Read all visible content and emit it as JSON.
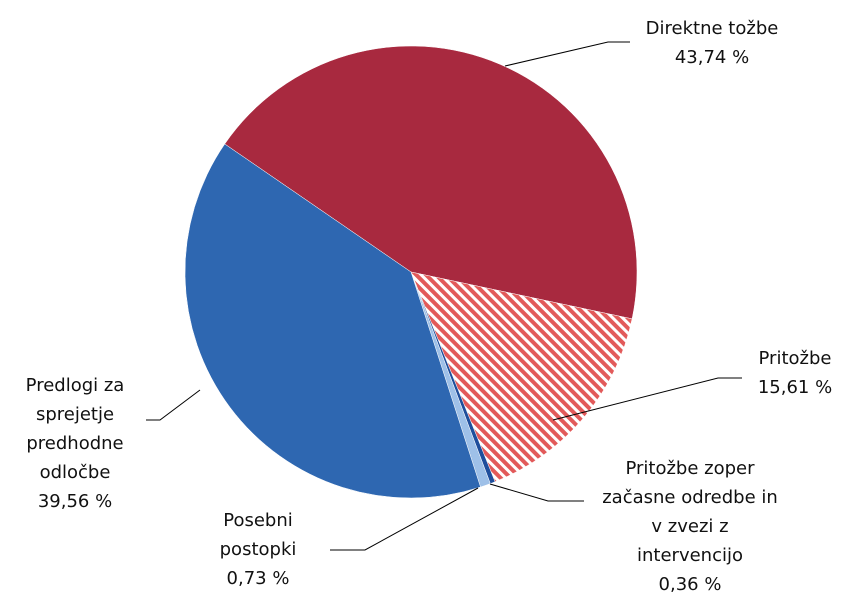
{
  "chart_data": {
    "type": "pie",
    "categories": [
      "Direktne tožbe",
      "Pritožbe",
      "Pritožbe zoper začasne odredbe in v zvezi z intervencijo",
      "Posebni postopki",
      "Predlogi za sprejetje predhodne odločbe"
    ],
    "values": [
      43.74,
      15.61,
      0.36,
      0.73,
      39.56
    ],
    "value_labels": [
      "43,74 %",
      "15,61 %",
      "0,36 %",
      "0,73 %",
      "39,56 %"
    ],
    "colors": [
      "#a8293f",
      "#e25a5a",
      "#1f4e9c",
      "#9ec0e8",
      "#2e67b1"
    ],
    "hatched": [
      false,
      true,
      false,
      false,
      false
    ]
  }
}
